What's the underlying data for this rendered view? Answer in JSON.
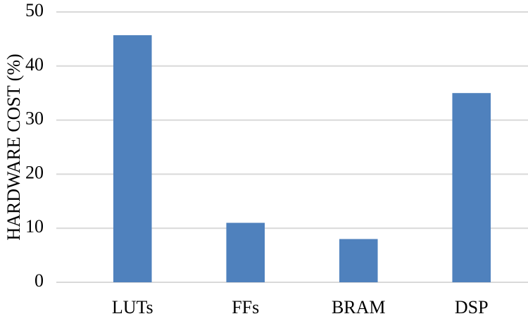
{
  "chart_data": {
    "type": "bar",
    "y_label": "HARDWARE COST (%)",
    "categories": [
      "LUTs",
      "FFs",
      "BRAM",
      "DSP"
    ],
    "values": [
      45.7,
      11,
      8,
      35
    ],
    "color": "#4f81bd",
    "ylim": [
      0,
      50
    ],
    "yticks": [
      0,
      10,
      20,
      30,
      40,
      50
    ],
    "grid": true
  }
}
